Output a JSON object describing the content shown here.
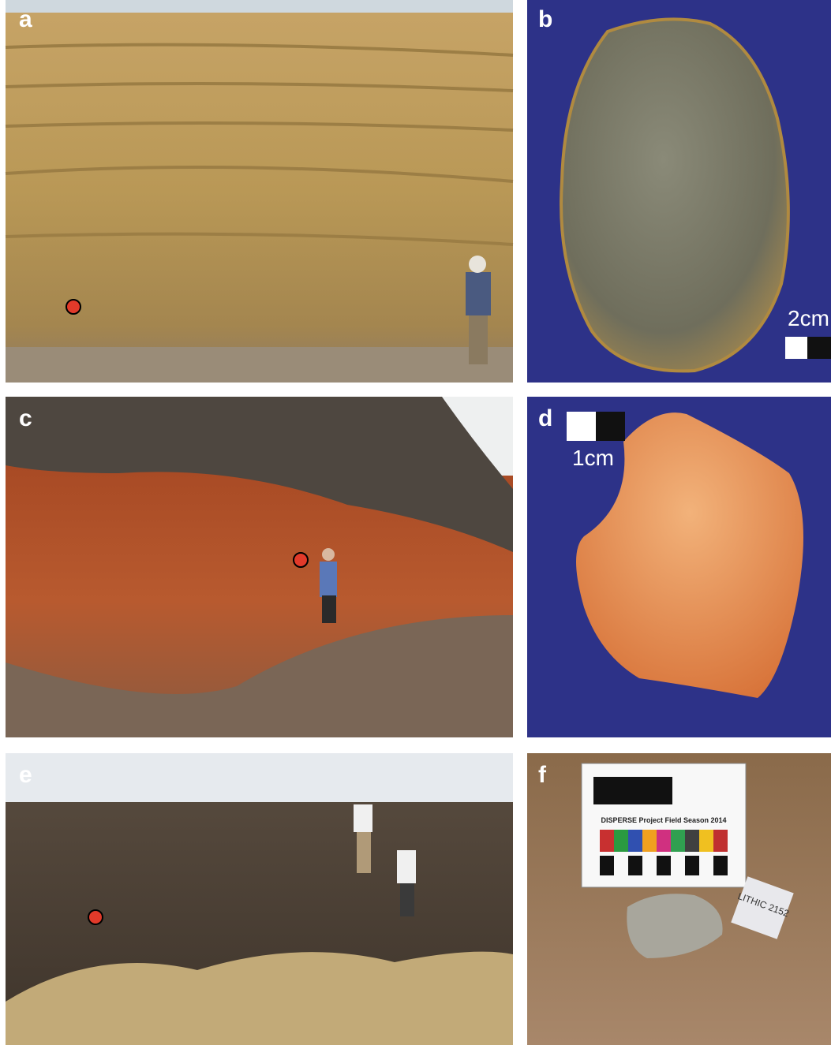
{
  "panels": [
    {
      "label": "a"
    },
    {
      "label": "b",
      "scale_label": "2cm"
    },
    {
      "label": "c"
    },
    {
      "label": "d",
      "scale_label": "1cm"
    },
    {
      "label": "e"
    },
    {
      "label": "f",
      "card_text": "DISPERSE Project Field Season 2014",
      "tag_text": "LITHIC 2152"
    }
  ]
}
